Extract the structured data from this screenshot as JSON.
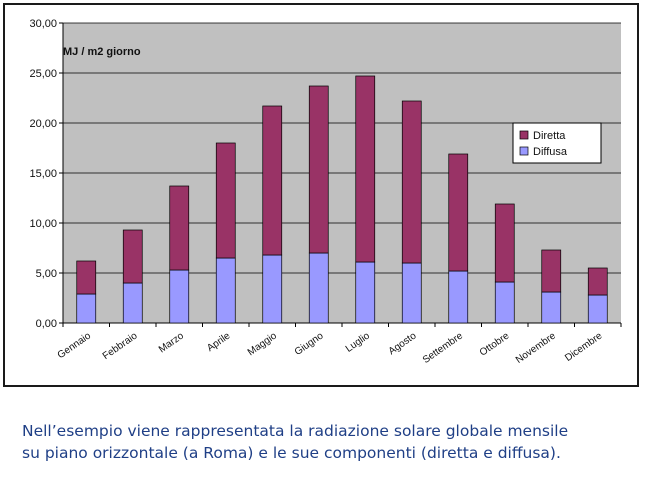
{
  "chart_data": {
    "type": "bar",
    "stacked": true,
    "unit_label": "MJ / m2 giorno",
    "categories": [
      "Gennaio",
      "Febbraio",
      "Marzo",
      "Aprile",
      "Maggio",
      "Giugno",
      "Luglio",
      "Agosto",
      "Settembre",
      "Ottobre",
      "Novembre",
      "Dicembre"
    ],
    "series": [
      {
        "name": "Diffusa",
        "color": "#9999ff",
        "values": [
          2.9,
          4.0,
          5.3,
          6.5,
          6.8,
          7.0,
          6.1,
          6.0,
          5.2,
          4.1,
          3.1,
          2.8
        ]
      },
      {
        "name": "Diretta",
        "color": "#993366",
        "values": [
          3.3,
          5.3,
          8.4,
          11.5,
          14.9,
          16.7,
          18.6,
          16.2,
          11.7,
          7.8,
          4.2,
          2.7
        ]
      }
    ],
    "ylim": [
      0,
      30
    ],
    "yticks": [
      "0,00",
      "5,00",
      "10,00",
      "15,00",
      "20,00",
      "25,00",
      "30,00"
    ],
    "grid": true,
    "plot_background": "#c0c0c0",
    "legend_position": "right",
    "legend": [
      "Diretta",
      "Diffusa"
    ]
  },
  "caption": {
    "line1": "Nell’esempio viene rappresentata la radiazione solare globale mensile",
    "line2": "su piano orizzontale (a Roma) e le sue componenti (diretta e diffusa)."
  }
}
